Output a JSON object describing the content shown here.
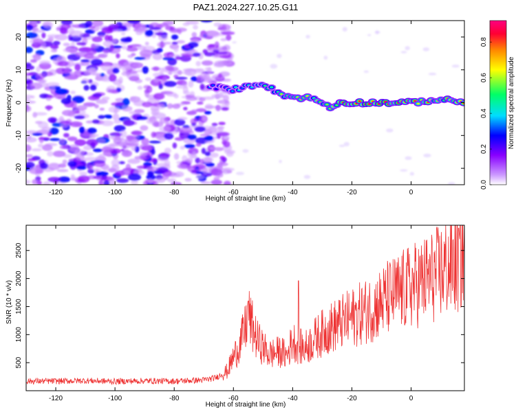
{
  "chart_data": [
    {
      "type": "heatmap",
      "title": "PAZ1.2024.227.10.25.G11",
      "xlabel": "Height of straight line (km)",
      "ylabel": "Frequency (Hz)",
      "xlim": [
        -130,
        18
      ],
      "ylim": [
        -25,
        25
      ],
      "x_ticks": [
        -120,
        -100,
        -80,
        -60,
        -40,
        -20,
        0
      ],
      "y_ticks": [
        -20,
        -10,
        0,
        10,
        20
      ],
      "colorbar": {
        "label": "Normalized spectral amplitude",
        "range": [
          0,
          0.92
        ],
        "ticks": [
          0.0,
          0.2,
          0.4,
          0.6,
          0.8
        ],
        "colors": [
          "#ffffff",
          "#cc99ff",
          "#8800ff",
          "#0000ff",
          "#00ddff",
          "#00ff66",
          "#ffff00",
          "#ff8800",
          "#ff0033",
          "#ff0080"
        ]
      },
      "noise_region": {
        "x_from": -130,
        "x_to": -65,
        "f_from": -25,
        "f_to": 25
      },
      "signal_ridge": {
        "x": [
          -68,
          -60,
          -55,
          -50,
          -46,
          -42,
          -38,
          -34,
          -30,
          -27,
          -24,
          -20,
          -10,
          0,
          10,
          18
        ],
        "frequency": [
          5,
          4,
          5,
          6,
          3.5,
          2,
          1.5,
          1.5,
          0,
          -1.5,
          0,
          0,
          0,
          0,
          1,
          0
        ],
        "amplitude": [
          0.35,
          0.4,
          0.45,
          0.5,
          0.55,
          0.6,
          0.6,
          0.65,
          0.6,
          0.6,
          0.75,
          0.85,
          0.9,
          0.8,
          0.7,
          0.85
        ]
      }
    },
    {
      "type": "line",
      "xlabel": "Height of straight line (km)",
      "ylabel": "SNR (10 * v/v)",
      "xlim": [
        -130,
        18
      ],
      "ylim": [
        0,
        2950
      ],
      "x_ticks": [
        -120,
        -100,
        -80,
        -60,
        -40,
        -20,
        0
      ],
      "y_ticks": [
        500,
        1000,
        1500,
        2000,
        2500
      ],
      "color": "#ee3333",
      "x": [
        -130,
        -120,
        -110,
        -100,
        -90,
        -80,
        -70,
        -66,
        -62,
        -60,
        -58,
        -56,
        -55,
        -52,
        -48,
        -44,
        -42,
        -40,
        -38,
        -36,
        -32,
        -28,
        -24,
        -20,
        -16,
        -12,
        -8,
        -4,
        0,
        4,
        8,
        12,
        16,
        18
      ],
      "values": [
        170,
        170,
        180,
        165,
        175,
        170,
        190,
        230,
        350,
        600,
        800,
        1100,
        1350,
        900,
        650,
        700,
        620,
        900,
        800,
        750,
        950,
        1100,
        1200,
        1300,
        1400,
        1500,
        1650,
        1750,
        1850,
        1950,
        2050,
        2200,
        2300,
        2500
      ],
      "spikes": [
        {
          "x": -55,
          "y": 1600
        },
        {
          "x": -38,
          "y": 1960
        },
        {
          "x": 16,
          "y": 2900
        }
      ]
    }
  ]
}
